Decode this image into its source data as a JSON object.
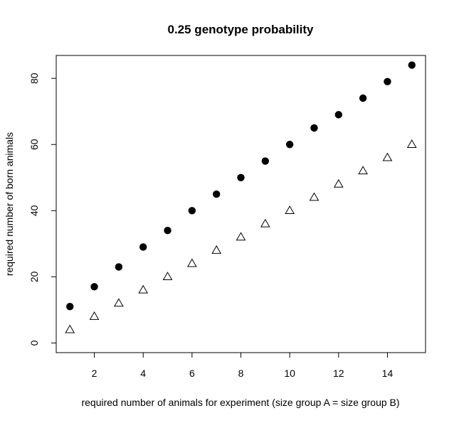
{
  "chart_data": {
    "type": "scatter",
    "title": "0.25 genotype probability",
    "xlabel": "required number of animals for experiment (size group A = size group B)",
    "ylabel": "required number of born animals",
    "xlim": [
      0.44,
      15.56
    ],
    "ylim": [
      -2.92,
      86.92
    ],
    "xticks": [
      2,
      4,
      6,
      8,
      10,
      12,
      14
    ],
    "yticks": [
      0,
      20,
      40,
      60,
      80
    ],
    "grid": false,
    "legend": "none",
    "series": [
      {
        "marker": "filled-circle",
        "color": "#000000",
        "x": [
          1,
          2,
          3,
          4,
          5,
          6,
          7,
          8,
          9,
          10,
          11,
          12,
          13,
          14,
          15
        ],
        "y": [
          11,
          17,
          23,
          29,
          34,
          40,
          45,
          50,
          55,
          60,
          65,
          69,
          74,
          79,
          84
        ]
      },
      {
        "marker": "open-triangle",
        "color": "#000000",
        "x": [
          1,
          2,
          3,
          4,
          5,
          6,
          7,
          8,
          9,
          10,
          11,
          12,
          13,
          14,
          15
        ],
        "y": [
          4,
          8,
          12,
          16,
          20,
          24,
          28,
          32,
          36,
          40,
          44,
          48,
          52,
          56,
          60
        ]
      }
    ]
  }
}
